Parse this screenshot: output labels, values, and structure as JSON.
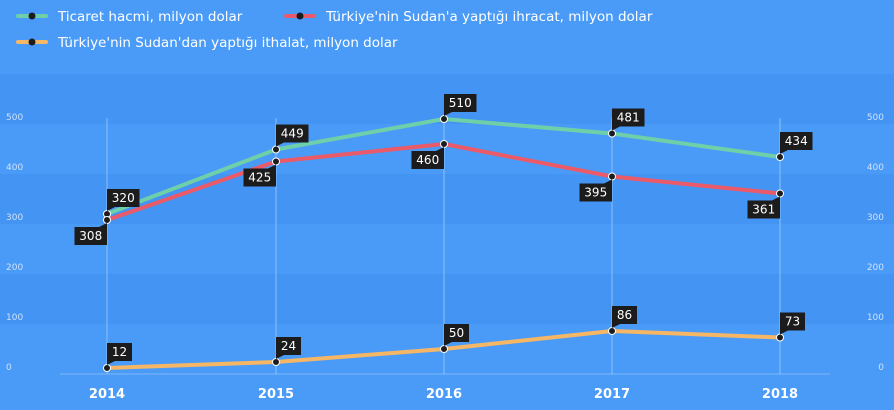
{
  "chart_data": {
    "type": "line",
    "categories": [
      "2014",
      "2015",
      "2016",
      "2017",
      "2018"
    ],
    "ylim": [
      0,
      600
    ],
    "yticks": [
      0,
      100,
      200,
      300,
      400,
      500
    ],
    "grid": true,
    "legend_position": "top-left",
    "series": [
      {
        "name": "Ticaret hacmi, milyon dolar",
        "color": "#6fcfa8",
        "values": [
          320,
          449,
          510,
          481,
          434
        ],
        "label_side": [
          "above",
          "above",
          "above",
          "above",
          "above"
        ]
      },
      {
        "name": "Türkiye'nin Sudan'a yaptığı ihracat, milyon dolar",
        "color": "#ea5a68",
        "values": [
          308,
          425,
          460,
          395,
          361
        ],
        "label_side": [
          "below",
          "below",
          "below",
          "below",
          "below"
        ]
      },
      {
        "name": "Türkiye'nin Sudan'dan yaptığı ithalat, milyon dolar",
        "color": "#f5b766",
        "values": [
          12,
          24,
          50,
          86,
          73
        ],
        "label_side": [
          "above",
          "above",
          "above",
          "above",
          "above"
        ]
      }
    ]
  },
  "colors": {
    "background": "#4a9bf7",
    "band": "#4494f3",
    "label_bg": "#1c1c1c",
    "point": "#1c1c1c"
  }
}
